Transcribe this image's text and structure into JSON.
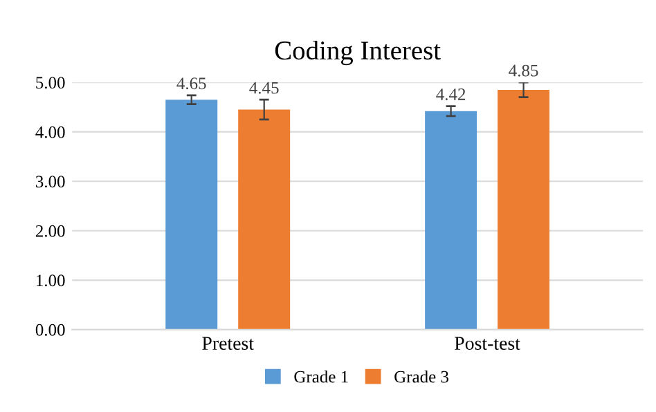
{
  "chart_data": {
    "type": "bar",
    "title": "Coding Interest",
    "categories": [
      "Pretest",
      "Post-test"
    ],
    "series": [
      {
        "name": "Grade 1",
        "color": "#5b9bd5",
        "values": [
          4.65,
          4.42
        ],
        "errors": [
          0.09,
          0.1
        ]
      },
      {
        "name": "Grade 3",
        "color": "#ed7d31",
        "values": [
          4.45,
          4.85
        ],
        "errors": [
          0.2,
          0.15
        ]
      }
    ],
    "ylim": [
      0,
      5
    ],
    "yticks": [
      {
        "value": 0,
        "label": "0.00"
      },
      {
        "value": 1,
        "label": "1.00"
      },
      {
        "value": 2,
        "label": "2.00"
      },
      {
        "value": 3,
        "label": "3.00"
      },
      {
        "value": 4,
        "label": "4.00"
      },
      {
        "value": 5,
        "label": "5.00"
      }
    ],
    "grid": "y",
    "legend": "bottom",
    "data_labels": true
  }
}
